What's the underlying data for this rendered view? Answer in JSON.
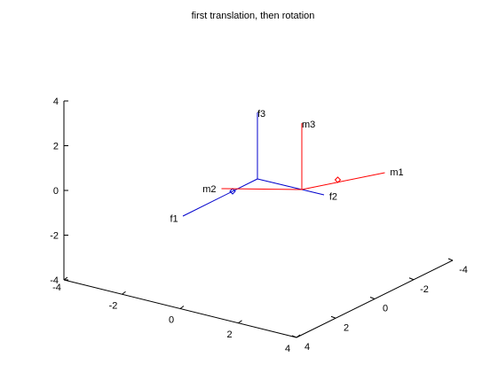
{
  "chart_data": {
    "type": "3d-line",
    "title": "first translation, then rotation",
    "xlabel": "",
    "ylabel": "",
    "zlabel": "",
    "xlim": [
      -4,
      4
    ],
    "ylim": [
      -4,
      4
    ],
    "zlim": [
      -4,
      4
    ],
    "x_ticks": [
      "-4",
      "-2",
      "0",
      "2",
      "4"
    ],
    "y_ticks": [
      "-4",
      "-2",
      "0",
      "2",
      "4"
    ],
    "z_ticks": [
      "-4",
      "-2",
      "0",
      "2",
      "4"
    ],
    "grid": false,
    "series": [
      {
        "color": "#0000cc",
        "frame": "fixed",
        "origin": [
          0,
          0,
          0
        ],
        "axes": [
          {
            "label": "f1",
            "end": [
              3,
              0,
              0
            ]
          },
          {
            "label": "f2",
            "end": [
              0,
              3,
              0
            ]
          },
          {
            "label": "f3",
            "end": [
              0,
              0,
              3
            ]
          }
        ],
        "marker": [
          1,
          0,
          0
        ]
      },
      {
        "color": "#ff0000",
        "frame": "moving",
        "origin": [
          0,
          2,
          0
        ],
        "axes": [
          {
            "label": "m1",
            "end": [
              -2,
              3.5,
              0
            ]
          },
          {
            "label": "m2",
            "end": [
              1,
              -0.5,
              0
            ]
          },
          {
            "label": "m3",
            "end": [
              0,
              2,
              3
            ]
          }
        ],
        "marker": [
          -1,
          2.5,
          0
        ]
      }
    ]
  }
}
